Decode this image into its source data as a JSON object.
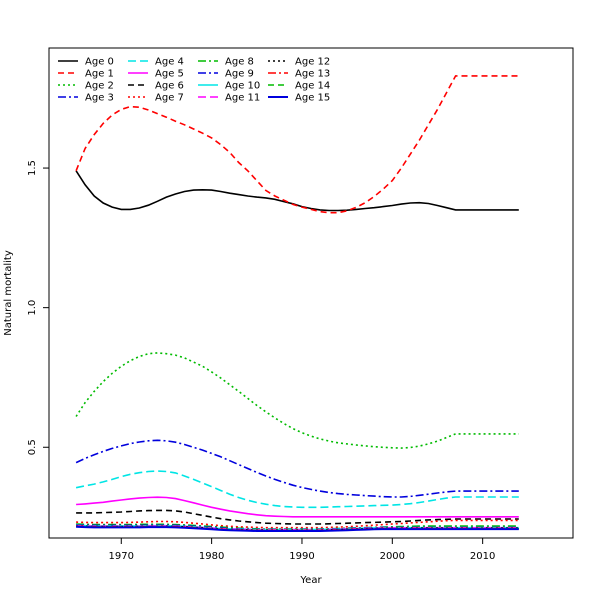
{
  "chart_data": {
    "type": "line",
    "xlabel": "Year",
    "ylabel": "Natural mortality",
    "xlim": [
      1962.0,
      2020.0
    ],
    "ylim": [
      0.175,
      1.93
    ],
    "x_ticks": [
      1970,
      1980,
      1990,
      2000,
      2010
    ],
    "y_ticks": [
      0.5,
      1.0,
      1.5
    ],
    "x_tick_labels": [
      "1970",
      "1980",
      "1990",
      "2000",
      "2010"
    ],
    "y_tick_labels": [
      "0.5",
      "1.0",
      "1.5"
    ],
    "grid": false,
    "legend_position": "top-left",
    "x": [
      1965,
      1966,
      1967,
      1968,
      1969,
      1970,
      1971,
      1972,
      1973,
      1974,
      1975,
      1976,
      1977,
      1978,
      1979,
      1980,
      1981,
      1982,
      1983,
      1984,
      1985,
      1986,
      1987,
      1988,
      1989,
      1990,
      1991,
      1992,
      1993,
      1994,
      1995,
      1996,
      1997,
      1998,
      1999,
      2000,
      2001,
      2002,
      2003,
      2004,
      2005,
      2006,
      2007,
      2008,
      2009,
      2010,
      2011,
      2012,
      2013,
      2014
    ],
    "series": [
      {
        "name": "Age 0",
        "color": "#000000",
        "dash": "solid",
        "width": 1.6,
        "values": [
          1.49,
          1.44,
          1.4,
          1.375,
          1.36,
          1.352,
          1.352,
          1.357,
          1.367,
          1.381,
          1.396,
          1.407,
          1.416,
          1.421,
          1.422,
          1.421,
          1.416,
          1.41,
          1.405,
          1.4,
          1.396,
          1.393,
          1.388,
          1.38,
          1.372,
          1.362,
          1.355,
          1.35,
          1.348,
          1.348,
          1.349,
          1.352,
          1.355,
          1.358,
          1.362,
          1.366,
          1.371,
          1.375,
          1.376,
          1.373,
          1.366,
          1.358,
          1.35,
          1.35,
          1.35,
          1.35,
          1.35,
          1.35,
          1.35,
          1.35
        ]
      },
      {
        "name": "Age 1",
        "color": "#ff0000",
        "dash": "6,4",
        "width": 1.6,
        "values": [
          1.49,
          1.57,
          1.62,
          1.66,
          1.69,
          1.71,
          1.72,
          1.718,
          1.708,
          1.695,
          1.682,
          1.668,
          1.655,
          1.64,
          1.625,
          1.608,
          1.584,
          1.556,
          1.52,
          1.49,
          1.455,
          1.42,
          1.4,
          1.385,
          1.37,
          1.36,
          1.352,
          1.344,
          1.34,
          1.34,
          1.347,
          1.359,
          1.376,
          1.398,
          1.425,
          1.455,
          1.5,
          1.55,
          1.6,
          1.655,
          1.71,
          1.77,
          1.83,
          1.83,
          1.83,
          1.83,
          1.83,
          1.83,
          1.83,
          1.83
        ]
      },
      {
        "name": "Age 2",
        "color": "#00bb00",
        "dash": "2,3",
        "width": 1.6,
        "values": [
          0.61,
          0.66,
          0.7,
          0.735,
          0.765,
          0.79,
          0.81,
          0.825,
          0.835,
          0.838,
          0.835,
          0.83,
          0.82,
          0.805,
          0.79,
          0.77,
          0.748,
          0.724,
          0.7,
          0.675,
          0.65,
          0.627,
          0.605,
          0.585,
          0.567,
          0.552,
          0.54,
          0.53,
          0.522,
          0.516,
          0.512,
          0.508,
          0.505,
          0.502,
          0.5,
          0.498,
          0.497,
          0.499,
          0.504,
          0.512,
          0.522,
          0.535,
          0.548,
          0.548,
          0.548,
          0.548,
          0.548,
          0.548,
          0.548,
          0.548
        ]
      },
      {
        "name": "Age 3",
        "color": "#0000dd",
        "dash": "8,3,2,3",
        "width": 1.6,
        "values": [
          0.445,
          0.46,
          0.473,
          0.485,
          0.496,
          0.505,
          0.513,
          0.519,
          0.523,
          0.525,
          0.523,
          0.518,
          0.51,
          0.5,
          0.49,
          0.478,
          0.466,
          0.452,
          0.438,
          0.424,
          0.41,
          0.397,
          0.385,
          0.374,
          0.364,
          0.356,
          0.349,
          0.343,
          0.338,
          0.334,
          0.331,
          0.329,
          0.327,
          0.325,
          0.323,
          0.322,
          0.322,
          0.324,
          0.328,
          0.332,
          0.336,
          0.34,
          0.343,
          0.343,
          0.343,
          0.343,
          0.343,
          0.343,
          0.343,
          0.343
        ]
      },
      {
        "name": "Age 4",
        "color": "#00e5e5",
        "dash": "8,4",
        "width": 1.6,
        "values": [
          0.355,
          0.362,
          0.368,
          0.376,
          0.385,
          0.395,
          0.403,
          0.409,
          0.413,
          0.415,
          0.413,
          0.408,
          0.397,
          0.385,
          0.372,
          0.359,
          0.345,
          0.332,
          0.32,
          0.31,
          0.302,
          0.296,
          0.291,
          0.288,
          0.286,
          0.285,
          0.285,
          0.285,
          0.286,
          0.287,
          0.288,
          0.289,
          0.29,
          0.291,
          0.292,
          0.293,
          0.295,
          0.298,
          0.302,
          0.307,
          0.313,
          0.318,
          0.322,
          0.322,
          0.322,
          0.322,
          0.322,
          0.322,
          0.322,
          0.322
        ]
      },
      {
        "name": "Age 5",
        "color": "#ff00ff",
        "dash": "solid",
        "width": 1.6,
        "values": [
          0.295,
          0.297,
          0.3,
          0.303,
          0.307,
          0.311,
          0.315,
          0.318,
          0.32,
          0.321,
          0.32,
          0.316,
          0.309,
          0.301,
          0.293,
          0.285,
          0.278,
          0.272,
          0.267,
          0.262,
          0.258,
          0.255,
          0.253,
          0.252,
          0.251,
          0.251,
          0.251,
          0.251,
          0.251,
          0.251,
          0.251,
          0.251,
          0.251,
          0.251,
          0.251,
          0.251,
          0.251,
          0.251,
          0.251,
          0.251,
          0.251,
          0.251,
          0.251,
          0.251,
          0.251,
          0.251,
          0.251,
          0.251,
          0.251,
          0.251
        ]
      },
      {
        "name": "Age 6",
        "color": "#000000",
        "dash": "6,4",
        "width": 1.6,
        "values": [
          0.265,
          0.265,
          0.265,
          0.266,
          0.267,
          0.268,
          0.27,
          0.272,
          0.273,
          0.274,
          0.274,
          0.272,
          0.268,
          0.262,
          0.256,
          0.25,
          0.244,
          0.24,
          0.236,
          0.233,
          0.23,
          0.228,
          0.227,
          0.226,
          0.225,
          0.225,
          0.225,
          0.225,
          0.226,
          0.227,
          0.228,
          0.229,
          0.23,
          0.231,
          0.232,
          0.233,
          0.234,
          0.236,
          0.238,
          0.24,
          0.241,
          0.242,
          0.243,
          0.243,
          0.243,
          0.243,
          0.243,
          0.243,
          0.243,
          0.243
        ]
      },
      {
        "name": "Age 7",
        "color": "#ff0000",
        "dash": "2,3",
        "width": 1.6,
        "values": [
          0.232,
          0.231,
          0.23,
          0.23,
          0.23,
          0.23,
          0.231,
          0.232,
          0.233,
          0.234,
          0.234,
          0.233,
          0.231,
          0.228,
          0.225,
          0.222,
          0.219,
          0.217,
          0.215,
          0.214,
          0.213,
          0.212,
          0.212,
          0.212,
          0.212,
          0.212,
          0.212,
          0.212,
          0.213,
          0.214,
          0.215,
          0.217,
          0.219,
          0.221,
          0.223,
          0.225,
          0.227,
          0.229,
          0.231,
          0.233,
          0.235,
          0.237,
          0.238,
          0.238,
          0.238,
          0.238,
          0.238,
          0.238,
          0.238,
          0.238
        ]
      },
      {
        "name": "Age 8",
        "color": "#00bb00",
        "dash": "8,3,2,3",
        "width": 1.6,
        "values": [
          0.225,
          0.224,
          0.223,
          0.223,
          0.223,
          0.223,
          0.223,
          0.224,
          0.224,
          0.224,
          0.224,
          0.223,
          0.222,
          0.22,
          0.218,
          0.216,
          0.214,
          0.212,
          0.21,
          0.209,
          0.208,
          0.207,
          0.207,
          0.207,
          0.207,
          0.207,
          0.207,
          0.207,
          0.208,
          0.209,
          0.21,
          0.211,
          0.212,
          0.213,
          0.214,
          0.215,
          0.216,
          0.217,
          0.218,
          0.218,
          0.218,
          0.218,
          0.218,
          0.218,
          0.218,
          0.218,
          0.218,
          0.218,
          0.218,
          0.218
        ]
      },
      {
        "name": "Age 9",
        "color": "#0000dd",
        "dash": "8,3,2,3",
        "width": 1.6,
        "values": [
          0.222,
          0.221,
          0.22,
          0.22,
          0.22,
          0.22,
          0.22,
          0.22,
          0.221,
          0.221,
          0.221,
          0.22,
          0.219,
          0.217,
          0.215,
          0.213,
          0.211,
          0.209,
          0.208,
          0.207,
          0.206,
          0.206,
          0.206,
          0.206,
          0.206,
          0.206,
          0.206,
          0.206,
          0.207,
          0.208,
          0.209,
          0.21,
          0.211,
          0.212,
          0.213,
          0.213,
          0.213,
          0.213,
          0.213,
          0.213,
          0.213,
          0.213,
          0.213,
          0.213,
          0.213,
          0.213,
          0.213,
          0.213,
          0.213,
          0.213
        ]
      },
      {
        "name": "Age 10",
        "color": "#00e5e5",
        "dash": "solid",
        "width": 1.6,
        "values": [
          0.22,
          0.219,
          0.218,
          0.218,
          0.218,
          0.218,
          0.218,
          0.218,
          0.219,
          0.219,
          0.219,
          0.218,
          0.217,
          0.215,
          0.213,
          0.211,
          0.209,
          0.208,
          0.207,
          0.206,
          0.205,
          0.205,
          0.205,
          0.205,
          0.205,
          0.205,
          0.205,
          0.205,
          0.206,
          0.207,
          0.208,
          0.209,
          0.21,
          0.211,
          0.212,
          0.212,
          0.212,
          0.212,
          0.212,
          0.212,
          0.212,
          0.212,
          0.212,
          0.212,
          0.212,
          0.212,
          0.212,
          0.212,
          0.212,
          0.212
        ]
      },
      {
        "name": "Age 11",
        "color": "#ff00ff",
        "dash": "8,4",
        "width": 1.6,
        "values": [
          0.219,
          0.218,
          0.217,
          0.217,
          0.217,
          0.217,
          0.217,
          0.217,
          0.218,
          0.218,
          0.218,
          0.217,
          0.216,
          0.214,
          0.212,
          0.21,
          0.208,
          0.207,
          0.206,
          0.205,
          0.204,
          0.204,
          0.204,
          0.204,
          0.204,
          0.204,
          0.204,
          0.204,
          0.205,
          0.206,
          0.207,
          0.208,
          0.209,
          0.21,
          0.211,
          0.211,
          0.211,
          0.211,
          0.211,
          0.211,
          0.211,
          0.211,
          0.211,
          0.211,
          0.211,
          0.211,
          0.211,
          0.211,
          0.211,
          0.211
        ]
      },
      {
        "name": "Age 12",
        "color": "#000000",
        "dash": "2,3",
        "width": 1.6,
        "values": [
          0.218,
          0.217,
          0.216,
          0.216,
          0.216,
          0.216,
          0.216,
          0.216,
          0.217,
          0.217,
          0.217,
          0.216,
          0.215,
          0.213,
          0.211,
          0.209,
          0.207,
          0.206,
          0.205,
          0.204,
          0.203,
          0.203,
          0.203,
          0.203,
          0.203,
          0.203,
          0.203,
          0.203,
          0.204,
          0.205,
          0.206,
          0.207,
          0.208,
          0.209,
          0.21,
          0.21,
          0.21,
          0.21,
          0.21,
          0.21,
          0.21,
          0.21,
          0.21,
          0.21,
          0.21,
          0.21,
          0.21,
          0.21,
          0.21,
          0.21
        ]
      },
      {
        "name": "Age 13",
        "color": "#ff0000",
        "dash": "8,3,2,3",
        "width": 1.6,
        "values": [
          0.217,
          0.216,
          0.215,
          0.215,
          0.215,
          0.215,
          0.215,
          0.215,
          0.216,
          0.216,
          0.216,
          0.215,
          0.214,
          0.212,
          0.21,
          0.208,
          0.206,
          0.205,
          0.204,
          0.203,
          0.202,
          0.202,
          0.202,
          0.202,
          0.202,
          0.202,
          0.202,
          0.202,
          0.203,
          0.204,
          0.205,
          0.206,
          0.207,
          0.208,
          0.209,
          0.209,
          0.209,
          0.209,
          0.209,
          0.209,
          0.209,
          0.209,
          0.209,
          0.209,
          0.209,
          0.209,
          0.209,
          0.209,
          0.209,
          0.209
        ]
      },
      {
        "name": "Age 14",
        "color": "#00bb00",
        "dash": "6,4",
        "width": 1.6,
        "values": [
          0.216,
          0.215,
          0.214,
          0.214,
          0.214,
          0.214,
          0.214,
          0.214,
          0.215,
          0.215,
          0.215,
          0.214,
          0.213,
          0.211,
          0.209,
          0.207,
          0.205,
          0.204,
          0.203,
          0.202,
          0.201,
          0.201,
          0.201,
          0.201,
          0.201,
          0.201,
          0.201,
          0.201,
          0.202,
          0.203,
          0.204,
          0.205,
          0.206,
          0.207,
          0.208,
          0.208,
          0.208,
          0.208,
          0.208,
          0.208,
          0.208,
          0.208,
          0.208,
          0.208,
          0.208,
          0.208,
          0.208,
          0.208,
          0.208,
          0.208
        ]
      },
      {
        "name": "Age 15",
        "color": "#0000dd",
        "dash": "solid",
        "width": 2.0,
        "values": [
          0.215,
          0.214,
          0.213,
          0.213,
          0.213,
          0.213,
          0.213,
          0.213,
          0.214,
          0.214,
          0.214,
          0.213,
          0.212,
          0.21,
          0.208,
          0.206,
          0.204,
          0.203,
          0.202,
          0.201,
          0.2,
          0.2,
          0.2,
          0.2,
          0.2,
          0.2,
          0.2,
          0.2,
          0.201,
          0.202,
          0.203,
          0.204,
          0.205,
          0.206,
          0.207,
          0.207,
          0.207,
          0.207,
          0.207,
          0.207,
          0.207,
          0.207,
          0.207,
          0.207,
          0.207,
          0.207,
          0.207,
          0.207,
          0.207,
          0.207
        ]
      }
    ]
  }
}
